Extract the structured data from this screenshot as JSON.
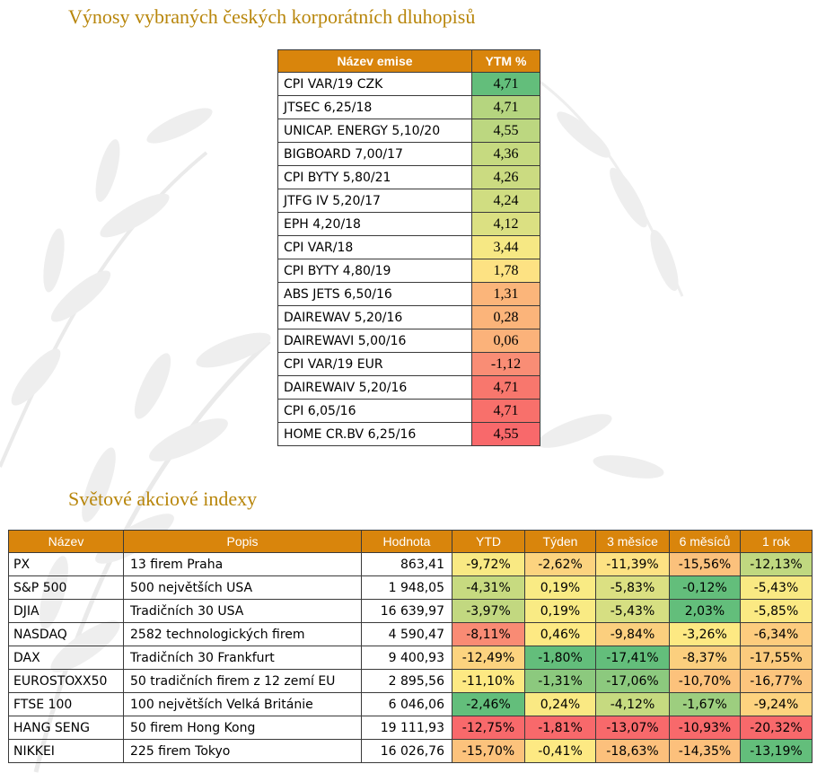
{
  "bonds": {
    "title": "Výnosy vybraných českých korporátních dluhopisů",
    "header_name": "Název emise",
    "header_ytm": "YTM %",
    "rows": [
      {
        "name": "CPI VAR/19 CZK",
        "ytm": "4,71",
        "color": "#63be7b"
      },
      {
        "name": "JTSEC 6,25/18",
        "ytm": "4,71",
        "color": "#b5d57f"
      },
      {
        "name": "UNICAP. ENERGY 5,10/20",
        "ytm": "4,55",
        "color": "#bcd780"
      },
      {
        "name": "BIGBOARD 7,00/17",
        "ytm": "4,36",
        "color": "#c6da80"
      },
      {
        "name": "CPI BYTY 5,80/21",
        "ytm": "4,26",
        "color": "#cbdb81"
      },
      {
        "name": "JTFG IV 5,20/17",
        "ytm": "4,24",
        "color": "#d0dd81"
      },
      {
        "name": "EPH 4,20/18",
        "ytm": "4,12",
        "color": "#dbe082"
      },
      {
        "name": "CPI VAR/18",
        "ytm": "3,44",
        "color": "#f6e884"
      },
      {
        "name": "CPI BYTY 4,80/19",
        "ytm": "1,78",
        "color": "#fde283"
      },
      {
        "name": "ABS JETS 6,50/16",
        "ytm": "1,31",
        "color": "#fbb57a"
      },
      {
        "name": "DAIREWAV 5,20/16",
        "ytm": "0,28",
        "color": "#fbb47a"
      },
      {
        "name": "DAIREWAVI 5,00/16",
        "ytm": "0,06",
        "color": "#fbb27a"
      },
      {
        "name": "CPI VAR/19 EUR",
        "ytm": "-1,12",
        "color": "#f98d75"
      },
      {
        "name": "DAIREWAIV 5,20/16",
        "ytm": "4,71",
        "color": "#f8776d"
      },
      {
        "name": "CPI 6,05/16",
        "ytm": "4,71",
        "color": "#f8706b"
      },
      {
        "name": "HOME CR.BV 6,25/16",
        "ytm": "4,55",
        "color": "#f8696b"
      }
    ]
  },
  "stocks": {
    "title": "Světové akciové indexy",
    "headers": [
      "Název",
      "Popis",
      "Hodnota",
      "YTD",
      "Týden",
      "3 měsíce",
      "6 měsíců",
      "1 rok"
    ],
    "rows": [
      {
        "name": "PX",
        "desc": "13 firem Praha",
        "value": "863,41",
        "pct": [
          "-9,72%",
          "-2,62%",
          "-11,39%",
          "-15,56%",
          "-12,13%"
        ],
        "colors": [
          "#f9e983",
          "#fcd37f",
          "#fde283",
          "#fbc17c",
          "#c0d880"
        ]
      },
      {
        "name": "S&P 500",
        "desc": "500 největších USA",
        "value": "1 948,05",
        "pct": [
          "-4,31%",
          "0,19%",
          "-5,83%",
          "-0,12%",
          "-5,43%"
        ],
        "colors": [
          "#c7da80",
          "#f9eb84",
          "#dbe082",
          "#63be7b",
          "#f9e983"
        ]
      },
      {
        "name": "DJIA",
        "desc": "Tradičních 30 USA",
        "value": "16 639,97",
        "pct": [
          "-3,97%",
          "0,19%",
          "-5,43%",
          "2,03%",
          "-5,85%"
        ],
        "colors": [
          "#c2d880",
          "#f9eb84",
          "#d6df82",
          "#63be7b",
          "#fbe983"
        ]
      },
      {
        "name": "NASDAQ",
        "desc": "2582 technologických firem",
        "value": "4 590,47",
        "pct": [
          "-8,11%",
          "0,46%",
          "-9,84%",
          "-3,26%",
          "-6,34%"
        ],
        "colors": [
          "#f98b74",
          "#fde983",
          "#fbcf7e",
          "#fde983",
          "#fdcc7e"
        ]
      },
      {
        "name": "DAX",
        "desc": "Tradičních 30 Frankfurt",
        "value": "9 400,93",
        "pct": [
          "-12,49%",
          "-1,80%",
          "-17,41%",
          "-8,37%",
          "-17,55%"
        ],
        "colors": [
          "#fcd37f",
          "#63be7b",
          "#63be7b",
          "#fbcf7e",
          "#fbca7d"
        ]
      },
      {
        "name": "EUROSTOXX50",
        "desc": "50 tradičních firem z 12 zemí EU",
        "value": "2 895,56",
        "pct": [
          "-11,10%",
          "-1,31%",
          "-17,06%",
          "-10,70%",
          "-16,77%"
        ],
        "colors": [
          "#fde983",
          "#8cc97e",
          "#8cc97e",
          "#fcc27c",
          "#fcc57d"
        ]
      },
      {
        "name": "FTSE 100",
        "desc": "100 největších Velká Británie",
        "value": "6 046,06",
        "pct": [
          "-2,46%",
          "0,24%",
          "-4,12%",
          "-1,67%",
          "-9,24%"
        ],
        "colors": [
          "#63be7b",
          "#fae983",
          "#c6da80",
          "#9dce7f",
          "#fdd37f"
        ]
      },
      {
        "name": "HANG SENG",
        "desc": "50 firem Hong Kong",
        "value": "19 111,93",
        "pct": [
          "-12,75%",
          "-1,81%",
          "-13,07%",
          "-10,93%",
          "-20,32%"
        ],
        "colors": [
          "#f8696b",
          "#f8696b",
          "#f8696b",
          "#f8696b",
          "#f8696b"
        ]
      },
      {
        "name": "NIKKEI",
        "desc": "225 firem Tokyo",
        "value": "16 026,76",
        "pct": [
          "-15,70%",
          "-0,41%",
          "-18,63%",
          "-14,35%",
          "-13,19%"
        ],
        "colors": [
          "#fcc27c",
          "#fde983",
          "#fcc07c",
          "#fcc07c",
          "#63be7b"
        ]
      }
    ]
  }
}
